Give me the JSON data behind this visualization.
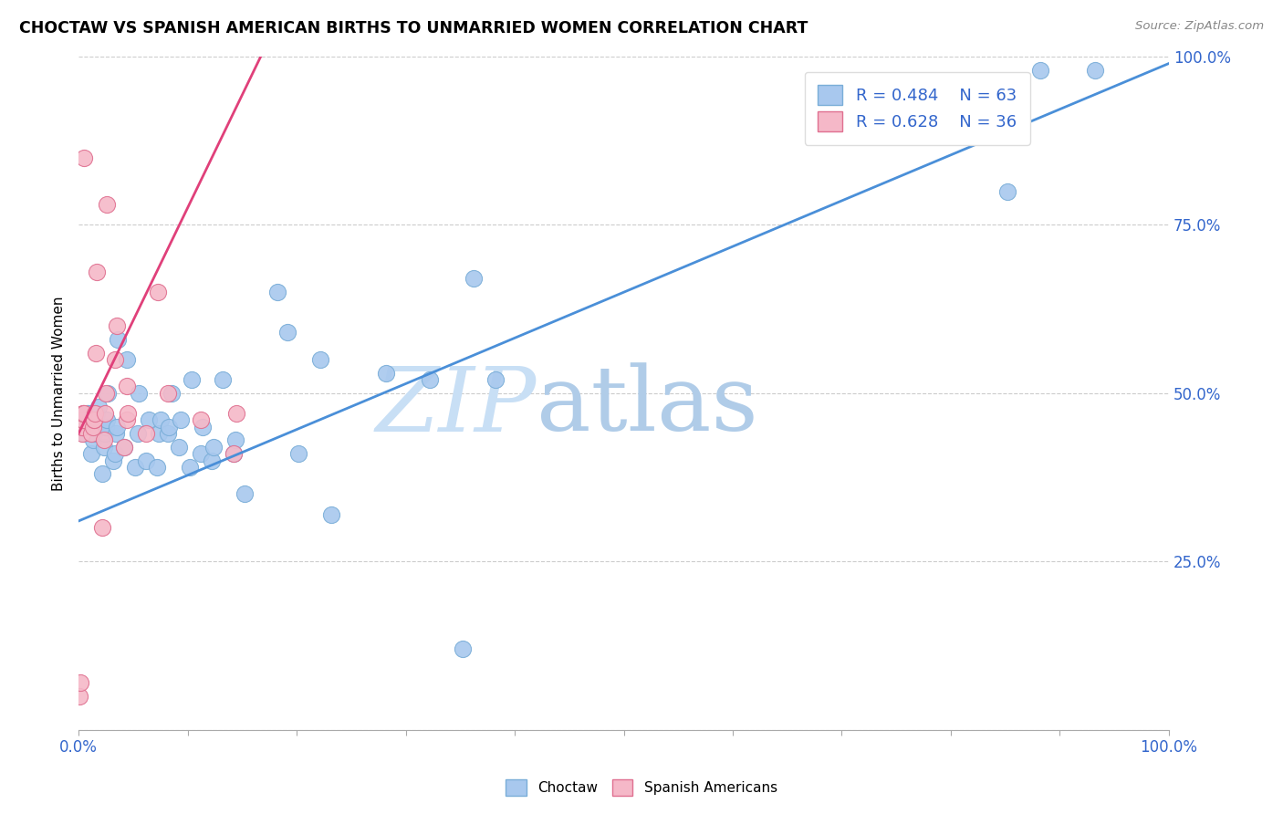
{
  "title": "CHOCTAW VS SPANISH AMERICAN BIRTHS TO UNMARRIED WOMEN CORRELATION CHART",
  "source": "Source: ZipAtlas.com",
  "ylabel": "Births to Unmarried Women",
  "x_min": 0.0,
  "x_max": 1.0,
  "y_min": 0.0,
  "y_max": 1.0,
  "choctaw_color": "#a8c8ee",
  "choctaw_edge_color": "#7aaed8",
  "spanish_color": "#f5b8c8",
  "spanish_edge_color": "#e07090",
  "trend_choctaw_color": "#4a8fd8",
  "trend_spanish_color": "#e0407a",
  "watermark_color": "#ddeeff",
  "R_choctaw": 0.484,
  "N_choctaw": 63,
  "R_spanish": 0.628,
  "N_spanish": 36,
  "choctaw_x": [
    0.005,
    0.005,
    0.005,
    0.006,
    0.007,
    0.008,
    0.008,
    0.012,
    0.013,
    0.014,
    0.015,
    0.016,
    0.017,
    0.018,
    0.022,
    0.023,
    0.024,
    0.025,
    0.026,
    0.027,
    0.032,
    0.033,
    0.034,
    0.035,
    0.036,
    0.042,
    0.044,
    0.052,
    0.054,
    0.055,
    0.062,
    0.064,
    0.072,
    0.074,
    0.075,
    0.082,
    0.083,
    0.085,
    0.092,
    0.094,
    0.102,
    0.104,
    0.112,
    0.114,
    0.122,
    0.124,
    0.132,
    0.142,
    0.144,
    0.152,
    0.182,
    0.192,
    0.202,
    0.222,
    0.232,
    0.282,
    0.322,
    0.352,
    0.362,
    0.382,
    0.852,
    0.882,
    0.932
  ],
  "choctaw_y": [
    0.44,
    0.44,
    0.46,
    0.46,
    0.46,
    0.47,
    0.47,
    0.41,
    0.43,
    0.44,
    0.45,
    0.46,
    0.47,
    0.48,
    0.38,
    0.42,
    0.44,
    0.45,
    0.46,
    0.5,
    0.4,
    0.41,
    0.44,
    0.45,
    0.58,
    0.42,
    0.55,
    0.39,
    0.44,
    0.5,
    0.4,
    0.46,
    0.39,
    0.44,
    0.46,
    0.44,
    0.45,
    0.5,
    0.42,
    0.46,
    0.39,
    0.52,
    0.41,
    0.45,
    0.4,
    0.42,
    0.52,
    0.41,
    0.43,
    0.35,
    0.65,
    0.59,
    0.41,
    0.55,
    0.32,
    0.53,
    0.52,
    0.12,
    0.67,
    0.52,
    0.8,
    0.98,
    0.98
  ],
  "spanish_x": [
    0.001,
    0.002,
    0.003,
    0.003,
    0.003,
    0.003,
    0.004,
    0.004,
    0.004,
    0.004,
    0.005,
    0.005,
    0.012,
    0.013,
    0.014,
    0.014,
    0.015,
    0.016,
    0.017,
    0.022,
    0.023,
    0.024,
    0.025,
    0.026,
    0.033,
    0.035,
    0.042,
    0.044,
    0.062,
    0.073,
    0.082,
    0.112,
    0.142,
    0.044,
    0.045,
    0.145
  ],
  "spanish_y": [
    0.05,
    0.07,
    0.44,
    0.45,
    0.45,
    0.46,
    0.46,
    0.46,
    0.47,
    0.47,
    0.47,
    0.85,
    0.44,
    0.45,
    0.46,
    0.46,
    0.47,
    0.56,
    0.68,
    0.3,
    0.43,
    0.47,
    0.5,
    0.78,
    0.55,
    0.6,
    0.42,
    0.51,
    0.44,
    0.65,
    0.5,
    0.46,
    0.41,
    0.46,
    0.47,
    0.47
  ],
  "trend_choctaw_x0": 0.0,
  "trend_choctaw_x1": 1.0,
  "trend_choctaw_y0": 0.31,
  "trend_choctaw_y1": 0.99,
  "trend_spanish_x0": 0.0,
  "trend_spanish_x1": 0.17,
  "trend_spanish_y0": 0.44,
  "trend_spanish_y1": 1.01
}
